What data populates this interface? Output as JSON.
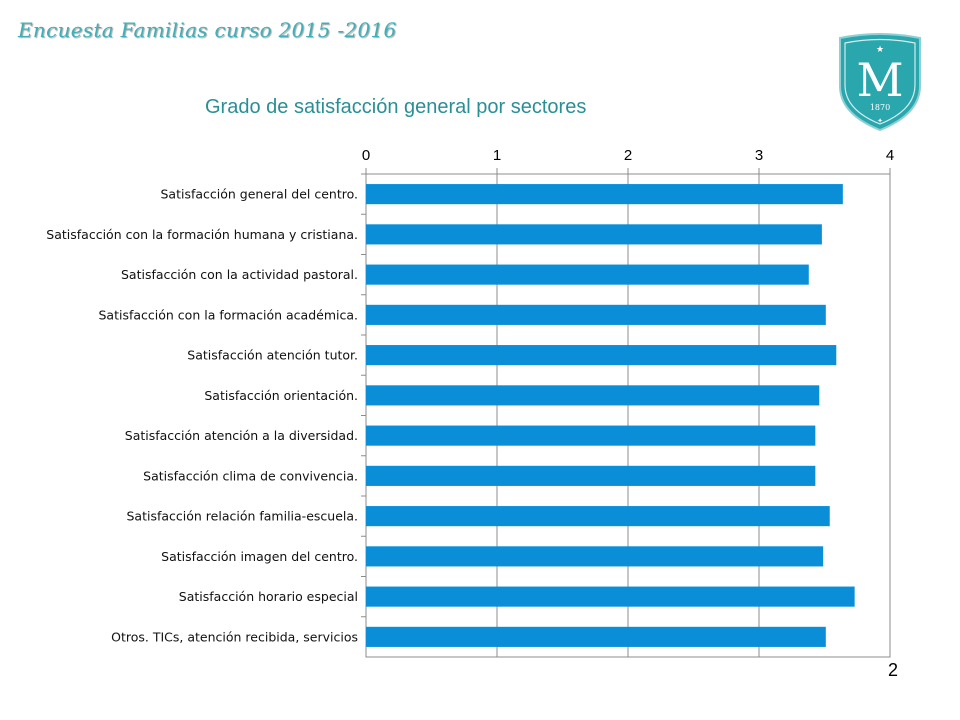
{
  "header": {
    "title": "Encuesta Familias curso 2015 -2016"
  },
  "logo": {
    "letter": "M",
    "year": "1870",
    "icon": "school-crest-icon",
    "color": "#2aa6ad"
  },
  "page_number": "2",
  "chart_data": {
    "type": "bar",
    "orientation": "horizontal",
    "title": "Grado de satisfacción general por sectores",
    "xlim": [
      0,
      4
    ],
    "xticks": [
      "0",
      "1",
      "2",
      "3",
      "4"
    ],
    "x_axis_position": "top",
    "grid": true,
    "bar_color": "#0a8ed8",
    "categories": [
      "Satisfacción general del centro.",
      "Satisfacción con la formación humana y cristiana.",
      "Satisfacción con la actividad pastoral.",
      "Satisfacción con la formación académica.",
      "Satisfacción atención tutor.",
      "Satisfacción orientación.",
      "Satisfacción  atención a la diversidad.",
      "Satisfacción clima de convivencia.",
      "Satisfacción relación familia-escuela.",
      "Satisfacción  imagen del centro.",
      "Satisfacción horario especial",
      "Otros. TICs, atención recibida, servicios"
    ],
    "values": [
      3.64,
      3.48,
      3.38,
      3.51,
      3.59,
      3.46,
      3.43,
      3.43,
      3.54,
      3.49,
      3.73,
      3.51
    ]
  }
}
